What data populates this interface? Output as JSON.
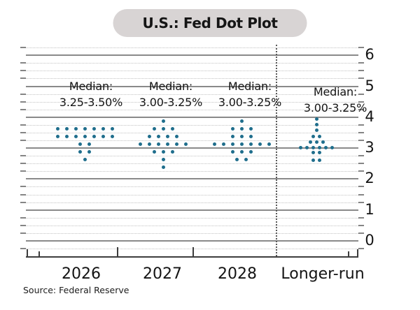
{
  "title": "U.S.: Fed Dot Plot",
  "source": "Source: Federal Reserve",
  "colors": {
    "dot": "#1f6e8c",
    "pill_bg": "#d8d4d4",
    "major_grid": "#8a8a8a",
    "minor_grid": "#c2c2c2",
    "axis": "#3d3d3d",
    "separator": "#5a5a5a",
    "text": "#141414"
  },
  "chart_data": {
    "type": "scatter",
    "variant": "fed-dot-plot",
    "title": "U.S.: Fed Dot Plot",
    "source": "Source: Federal Reserve",
    "y_axis": {
      "side": "right",
      "ticks": [
        0,
        1,
        2,
        3,
        4,
        5,
        6
      ],
      "minor_step": 0.25,
      "range": [
        -0.5,
        6.25
      ],
      "unit": "%"
    },
    "median_label": "Median:",
    "separator_after_column": "2028",
    "categories": [
      "2026",
      "2027",
      "2028",
      "Longer-run"
    ],
    "medians": [
      "3.25-3.50%",
      "3.00-3.25%",
      "3.00-3.25%",
      "3.00-3.25%"
    ],
    "columns": [
      {
        "label": "2026",
        "median": "3.25-3.50%",
        "dots": [
          {
            "value": 3.625,
            "count": 7
          },
          {
            "value": 3.375,
            "count": 7
          },
          {
            "value": 3.125,
            "count": 2
          },
          {
            "value": 2.875,
            "count": 2
          },
          {
            "value": 2.625,
            "count": 1
          }
        ]
      },
      {
        "label": "2027",
        "median": "3.00-3.25%",
        "dots": [
          {
            "value": 3.875,
            "count": 1
          },
          {
            "value": 3.625,
            "count": 3
          },
          {
            "value": 3.375,
            "count": 4
          },
          {
            "value": 3.125,
            "count": 6
          },
          {
            "value": 2.875,
            "count": 3
          },
          {
            "value": 2.625,
            "count": 1
          },
          {
            "value": 2.375,
            "count": 1
          }
        ]
      },
      {
        "label": "2028",
        "median": "3.00-3.25%",
        "dots": [
          {
            "value": 3.875,
            "count": 1
          },
          {
            "value": 3.625,
            "count": 3
          },
          {
            "value": 3.375,
            "count": 3
          },
          {
            "value": 3.125,
            "count": 7
          },
          {
            "value": 2.875,
            "count": 3
          },
          {
            "value": 2.625,
            "count": 2
          }
        ]
      },
      {
        "label": "Longer-run",
        "median": "3.00-3.25%",
        "dots": [
          {
            "value": 3.93,
            "count": 1
          },
          {
            "value": 3.75,
            "count": 1
          },
          {
            "value": 3.57,
            "count": 1
          },
          {
            "value": 3.38,
            "count": 2
          },
          {
            "value": 3.2,
            "count": 3
          },
          {
            "value": 3.02,
            "count": 6
          },
          {
            "value": 2.85,
            "count": 2
          },
          {
            "value": 2.6,
            "count": 2
          }
        ]
      }
    ]
  }
}
